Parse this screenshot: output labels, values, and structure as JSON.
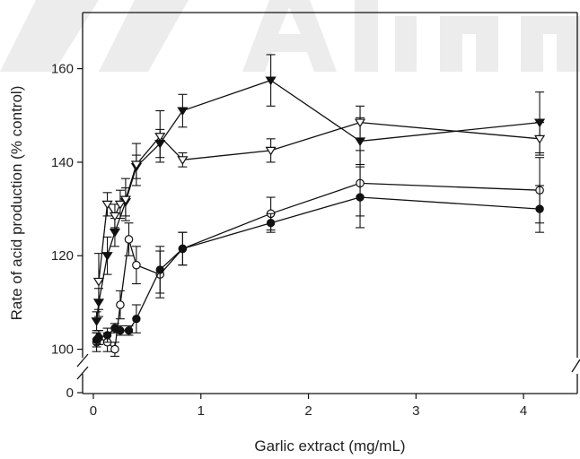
{
  "chart_data": {
    "type": "line",
    "title": "",
    "xlabel": "Garlic extract (mg/mL)",
    "ylabel": "Rate of acid production (% control)",
    "xlim": [
      -0.1,
      4.5
    ],
    "ylim_main": [
      98,
      172
    ],
    "y_break_display": {
      "below": 100,
      "show": 0
    },
    "x_ticks": [
      "0",
      "1",
      "2",
      "3",
      "4"
    ],
    "x_tick_values": [
      0,
      1,
      2,
      3,
      4
    ],
    "y_ticks": [
      "100",
      "120",
      "140",
      "160"
    ],
    "y_tick_values": [
      100,
      120,
      140,
      160
    ],
    "y_zero_label": "0",
    "grid": false,
    "legend": "none",
    "colors": {
      "axis": "#111111",
      "series": "#111111",
      "watermark": "#e9e9e9"
    },
    "series": [
      {
        "marker": "filled-triangle-down",
        "x": [
          0.03,
          0.05,
          0.13,
          0.2,
          0.3,
          0.4,
          0.62,
          0.83,
          1.65,
          2.48,
          4.15
        ],
        "y": [
          106,
          110,
          120,
          125,
          131.5,
          139,
          144,
          151,
          157.5,
          144.5,
          148.5
        ],
        "err": [
          2,
          3,
          4,
          3,
          3,
          2.5,
          3,
          3.5,
          5.5,
          5,
          6.5
        ]
      },
      {
        "marker": "open-triangle-down",
        "x": [
          0.05,
          0.13,
          0.2,
          0.25,
          0.3,
          0.4,
          0.62,
          0.83,
          1.65,
          2.48,
          4.15
        ],
        "y": [
          114.5,
          131,
          128.5,
          131,
          132,
          139.5,
          145.5,
          140.5,
          142.5,
          148.5,
          145
        ],
        "err": [
          6,
          2.5,
          2.5,
          3,
          4.5,
          4.5,
          5.5,
          1.5,
          2.5,
          3.5,
          3.5
        ]
      },
      {
        "marker": "open-circle",
        "x": [
          0.03,
          0.05,
          0.13,
          0.2,
          0.25,
          0.33,
          0.4,
          0.62,
          0.83,
          1.65,
          2.48,
          4.15
        ],
        "y": [
          101.5,
          102.5,
          101.5,
          100,
          109.5,
          123.5,
          118,
          116,
          121.5,
          129,
          135.5,
          134
        ],
        "err": [
          2,
          1.5,
          2,
          1.5,
          3,
          3.5,
          4,
          5,
          3.5,
          3.5,
          7,
          7
        ]
      },
      {
        "marker": "filled-circle",
        "x": [
          0.03,
          0.05,
          0.13,
          0.2,
          0.25,
          0.33,
          0.4,
          0.62,
          0.83,
          1.65,
          2.48,
          4.15
        ],
        "y": [
          102,
          102.5,
          103,
          104.5,
          104,
          104,
          106.5,
          117,
          121.5,
          127,
          132.5,
          130
        ],
        "err": [
          1.5,
          1.5,
          1.5,
          1,
          1,
          1,
          3,
          5,
          3.5,
          2,
          6.5,
          5
        ]
      }
    ]
  }
}
